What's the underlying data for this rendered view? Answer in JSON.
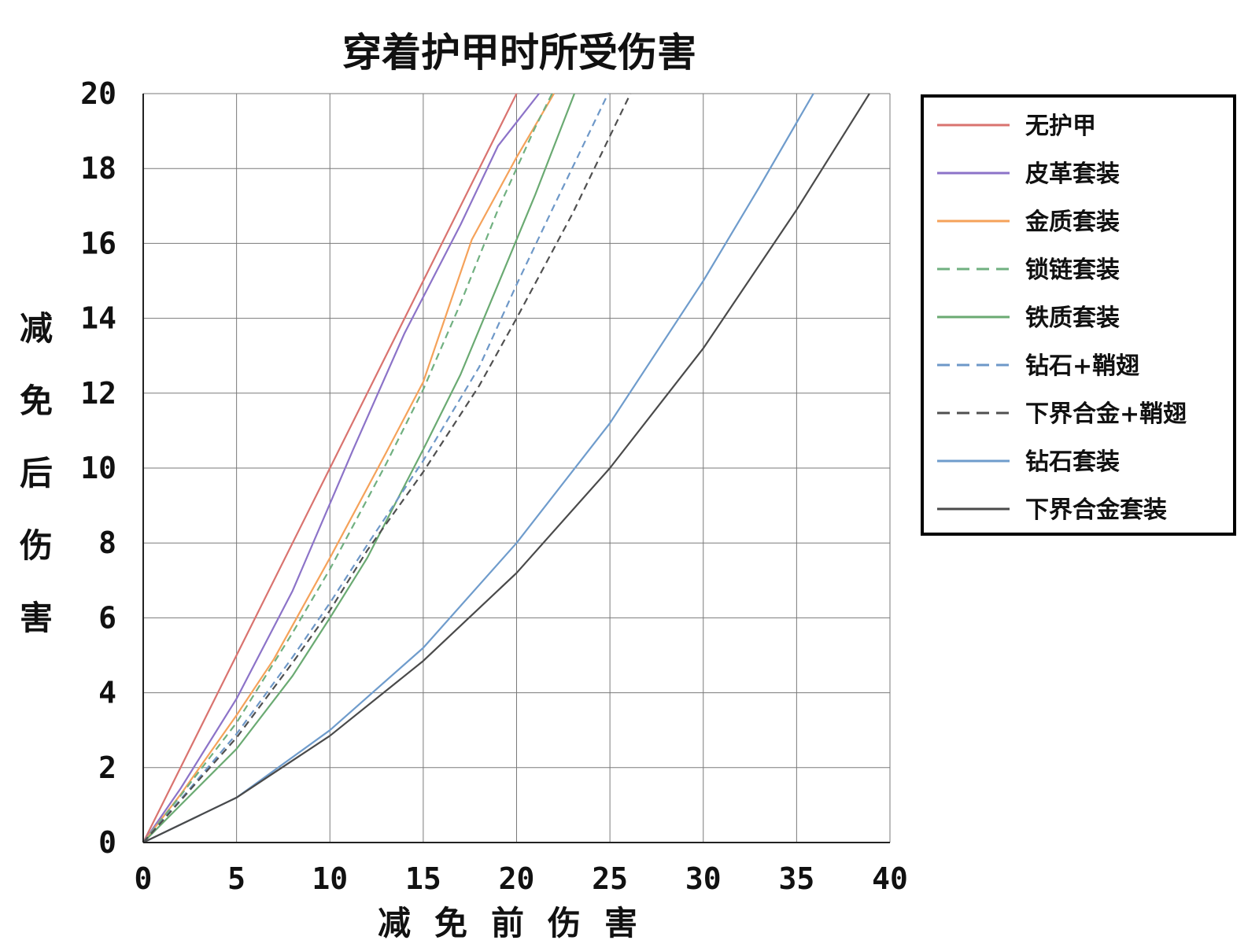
{
  "chart_data": {
    "type": "line",
    "title": "穿着护甲时所受伤害",
    "xlabel": "减免前伤害",
    "ylabel": "减免后伤害",
    "xlim": [
      0,
      40
    ],
    "ylim": [
      0,
      20
    ],
    "xticks": [
      "0",
      "5",
      "10",
      "15",
      "20",
      "25",
      "30",
      "35",
      "40"
    ],
    "yticks": [
      "0",
      "2",
      "4",
      "6",
      "8",
      "10",
      "12",
      "14",
      "16",
      "18",
      "20"
    ],
    "grid": true,
    "legend_position": "right",
    "series": [
      {
        "name": "无护甲",
        "color": "#d9736f",
        "dashed": false,
        "points": [
          [
            0,
            0
          ],
          [
            5,
            5
          ],
          [
            10,
            10
          ],
          [
            15,
            15
          ],
          [
            20,
            20
          ]
        ]
      },
      {
        "name": "皮革套装",
        "color": "#8c73c8",
        "dashed": false,
        "points": [
          [
            0,
            0
          ],
          [
            2,
            1.44
          ],
          [
            5,
            3.84
          ],
          [
            8,
            6.72
          ],
          [
            11.25,
            10.5
          ],
          [
            14,
            13.6
          ],
          [
            17,
            16.5
          ],
          [
            19,
            18.6
          ],
          [
            21.2,
            20
          ]
        ]
      },
      {
        "name": "金质套装",
        "color": "#f5a25a",
        "dashed": false,
        "points": [
          [
            0,
            0
          ],
          [
            2,
            1.28
          ],
          [
            5,
            3.4
          ],
          [
            7,
            4.9
          ],
          [
            10,
            7.6
          ],
          [
            13,
            10.4
          ],
          [
            15,
            12.3
          ],
          [
            17.6,
            16.1
          ],
          [
            20,
            18.3
          ],
          [
            22.0,
            20
          ]
        ]
      },
      {
        "name": "锁链套装",
        "color": "#70b080",
        "dashed": true,
        "points": [
          [
            0,
            0
          ],
          [
            2,
            1.25
          ],
          [
            5,
            3.2
          ],
          [
            8,
            5.6
          ],
          [
            10,
            7.3
          ],
          [
            13,
            10.1
          ],
          [
            15,
            12.1
          ],
          [
            17,
            14.4
          ],
          [
            19,
            16.9
          ],
          [
            21,
            19.1
          ],
          [
            21.9,
            20
          ]
        ]
      },
      {
        "name": "铁质套装",
        "color": "#6aaa72",
        "dashed": false,
        "points": [
          [
            0,
            0
          ],
          [
            2,
            1.0
          ],
          [
            5,
            2.5
          ],
          [
            8,
            4.45
          ],
          [
            10,
            6.0
          ],
          [
            12,
            7.6
          ],
          [
            15,
            10.5
          ],
          [
            17,
            12.5
          ],
          [
            19,
            14.9
          ],
          [
            21,
            17.3
          ],
          [
            23.1,
            20
          ]
        ]
      },
      {
        "name": "钻石+鞘翅",
        "color": "#6e98c8",
        "dashed": true,
        "points": [
          [
            0,
            0
          ],
          [
            2,
            1.15
          ],
          [
            5,
            2.9
          ],
          [
            8,
            4.95
          ],
          [
            10,
            6.4
          ],
          [
            12,
            7.95
          ],
          [
            15,
            10.2
          ],
          [
            18,
            12.7
          ],
          [
            20,
            14.9
          ],
          [
            22,
            17.0
          ],
          [
            24.9,
            20
          ]
        ]
      },
      {
        "name": "下界合金+鞘翅",
        "color": "#505050",
        "dashed": true,
        "points": [
          [
            0,
            0
          ],
          [
            2,
            1.12
          ],
          [
            5,
            2.8
          ],
          [
            8,
            4.8
          ],
          [
            10,
            6.2
          ],
          [
            12,
            7.8
          ],
          [
            15,
            9.9
          ],
          [
            18,
            12.2
          ],
          [
            20,
            14.0
          ],
          [
            23,
            16.8
          ],
          [
            26.1,
            20
          ]
        ]
      },
      {
        "name": "钻石套装",
        "color": "#6f9ccc",
        "dashed": false,
        "points": [
          [
            0,
            0
          ],
          [
            5,
            1.2
          ],
          [
            10,
            3.0
          ],
          [
            15,
            5.2
          ],
          [
            20,
            8.0
          ],
          [
            25,
            11.2
          ],
          [
            30,
            15.0
          ],
          [
            33,
            17.5
          ],
          [
            35.9,
            20
          ]
        ]
      },
      {
        "name": "下界合金套装",
        "color": "#4a4a4a",
        "dashed": false,
        "points": [
          [
            0,
            0
          ],
          [
            5,
            1.2
          ],
          [
            10,
            2.85
          ],
          [
            15,
            4.85
          ],
          [
            20,
            7.2
          ],
          [
            25,
            10.0
          ],
          [
            30,
            13.2
          ],
          [
            35,
            16.9
          ],
          [
            38.9,
            20
          ]
        ]
      }
    ]
  }
}
